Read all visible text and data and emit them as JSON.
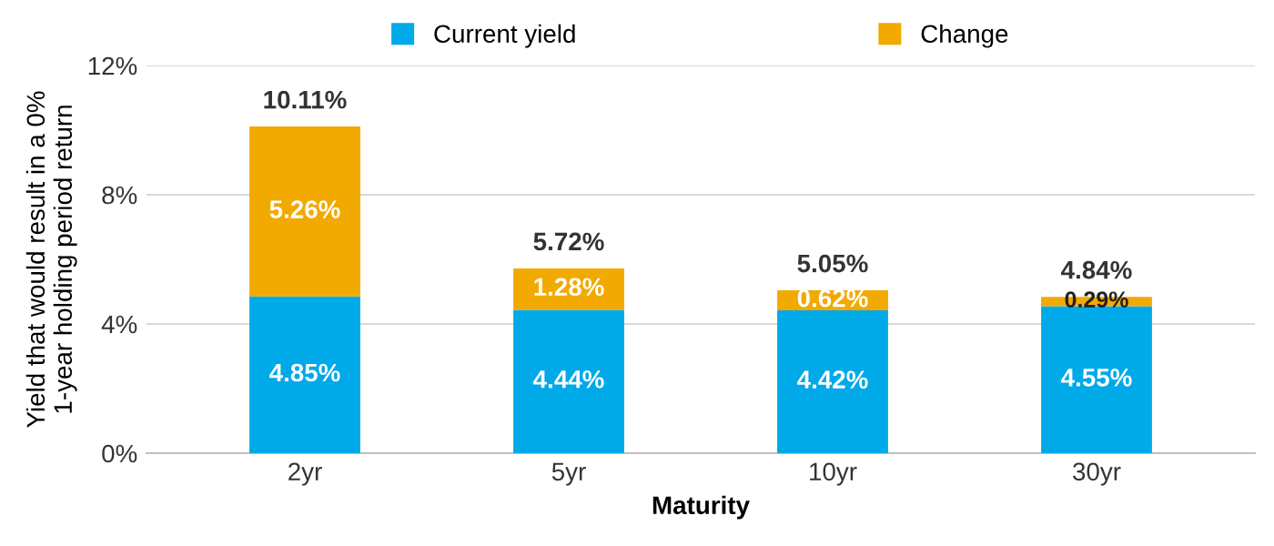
{
  "chart_data": {
    "type": "bar",
    "stacked": true,
    "xlabel": "Maturity",
    "ylabel": "Yield that would result in a 0%\n1-year holding period return",
    "categories": [
      "2yr",
      "5yr",
      "10yr",
      "30yr"
    ],
    "series": [
      {
        "name": "Current yield",
        "color": "#00a9e8",
        "values": [
          4.85,
          4.44,
          4.42,
          4.55
        ],
        "value_labels": [
          "4.85%",
          "4.44%",
          "4.42%",
          "4.55%"
        ]
      },
      {
        "name": "Change",
        "color": "#f2a900",
        "values": [
          5.26,
          1.28,
          0.62,
          0.29
        ],
        "value_labels": [
          "5.26%",
          "1.28%",
          "0.62%",
          "0.29%"
        ]
      }
    ],
    "totals": [
      "10.11%",
      "5.72%",
      "5.05%",
      "4.84%"
    ],
    "ylim": [
      0,
      12
    ],
    "yticks": [
      {
        "value": 0,
        "label": "0%"
      },
      {
        "value": 4,
        "label": "4%"
      },
      {
        "value": 8,
        "label": "8%"
      },
      {
        "value": 12,
        "label": "12%"
      }
    ],
    "grid": "y",
    "legend": "top"
  }
}
